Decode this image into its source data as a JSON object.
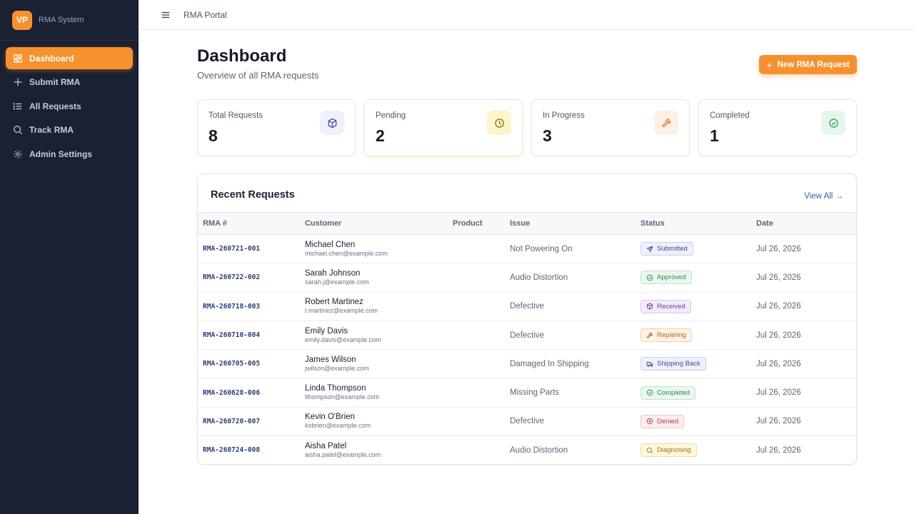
{
  "sidebar": {
    "logo_text": "VP",
    "brand": "RMA System",
    "items": [
      {
        "label": "Dashboard",
        "icon": "dashboard-icon",
        "active": true
      },
      {
        "label": "Submit RMA",
        "icon": "plus-icon",
        "active": false
      },
      {
        "label": "All Requests",
        "icon": "list-icon",
        "active": false
      },
      {
        "label": "Track RMA",
        "icon": "search-icon",
        "active": false
      },
      {
        "label": "Admin Settings",
        "icon": "gear-icon",
        "active": false
      }
    ]
  },
  "topbar": {
    "title": "RMA Portal",
    "menu_icon": "hamburger-icon"
  },
  "header": {
    "title": "Dashboard",
    "subtitle": "Overview of all RMA requests",
    "new_button": "New RMA Request"
  },
  "stats": [
    {
      "label": "Total Requests",
      "value": "8",
      "icon": "box-icon",
      "color": "#3b4a9a",
      "bg": "#eef0fb"
    },
    {
      "label": "Pending",
      "value": "2",
      "icon": "clock-icon",
      "color": "#b38a00",
      "bg": "#fdf4cc"
    },
    {
      "label": "In Progress",
      "value": "3",
      "icon": "wrench-icon",
      "color": "#e07a1f",
      "bg": "#fef1e3"
    },
    {
      "label": "Completed",
      "value": "1",
      "icon": "check-circle-icon",
      "color": "#2f9a55",
      "bg": "#e6f6eb"
    }
  ],
  "recent": {
    "title": "Recent Requests",
    "view_all": "View All →",
    "columns": [
      "RMA #",
      "Customer",
      "Product",
      "Issue",
      "Status",
      "Date"
    ],
    "rows": [
      {
        "rma": "RMA-260721-001",
        "name": "Michael Chen",
        "email": "michael.chen@example.com",
        "product": "",
        "issue": "Not Powering On",
        "status": "Submitted",
        "status_icon": "send-icon",
        "date": "Jul 26, 2026"
      },
      {
        "rma": "RMA-260722-002",
        "name": "Sarah Johnson",
        "email": "sarah.j@example.com",
        "product": "",
        "issue": "Audio Distortion",
        "status": "Approved",
        "status_icon": "check-circle-icon",
        "date": "Jul 26, 2026"
      },
      {
        "rma": "RMA-260718-003",
        "name": "Robert Martinez",
        "email": "r.martinez@example.com",
        "product": "",
        "issue": "Defective",
        "status": "Received",
        "status_icon": "box-icon",
        "date": "Jul 26, 2026"
      },
      {
        "rma": "RMA-260710-004",
        "name": "Emily Davis",
        "email": "emily.davis@example.com",
        "product": "",
        "issue": "Defective",
        "status": "Repairing",
        "status_icon": "wrench-icon",
        "date": "Jul 26, 2026"
      },
      {
        "rma": "RMA-260705-005",
        "name": "James Wilson",
        "email": "jwilson@example.com",
        "product": "",
        "issue": "Damaged In Shipping",
        "status": "Shipping Back",
        "status_icon": "truck-icon",
        "date": "Jul 26, 2026"
      },
      {
        "rma": "RMA-260628-006",
        "name": "Linda Thompson",
        "email": "lthompson@example.com",
        "product": "",
        "issue": "Missing Parts",
        "status": "Completed",
        "status_icon": "check-circle-icon",
        "date": "Jul 26, 2026"
      },
      {
        "rma": "RMA-260720-007",
        "name": "Kevin O'Brien",
        "email": "kobrien@example.com",
        "product": "",
        "issue": "Defective",
        "status": "Denied",
        "status_icon": "x-circle-icon",
        "date": "Jul 26, 2026"
      },
      {
        "rma": "RMA-260724-008",
        "name": "Aisha Patel",
        "email": "aisha.patel@example.com",
        "product": "",
        "issue": "Audio Distortion",
        "status": "Diagnosing",
        "status_icon": "search-icon",
        "date": "Jul 26, 2026"
      }
    ]
  },
  "status_colors": {
    "Submitted": {
      "fg": "#3b4a9a",
      "bg": "#eef0fb",
      "border": "#c9cfee"
    },
    "Approved": {
      "fg": "#2f8a4e",
      "bg": "#eaf7ee",
      "border": "#bfe5cb"
    },
    "Received": {
      "fg": "#6b3fa0",
      "bg": "#f3ecfb",
      "border": "#d9c7ef"
    },
    "Repairing": {
      "fg": "#b5621a",
      "bg": "#fef3e6",
      "border": "#f4d1ab"
    },
    "Shipping Back": {
      "fg": "#3b4a9a",
      "bg": "#eef0fb",
      "border": "#c9cfee"
    },
    "Completed": {
      "fg": "#2f8a4e",
      "bg": "#eaf7ee",
      "border": "#bfe5cb"
    },
    "Denied": {
      "fg": "#b83a3a",
      "bg": "#fdeeee",
      "border": "#f1c6c6"
    },
    "Diagnosing": {
      "fg": "#9a7a10",
      "bg": "#fdf7dc",
      "border": "#eedf9c"
    }
  },
  "accent": "#f5922e"
}
